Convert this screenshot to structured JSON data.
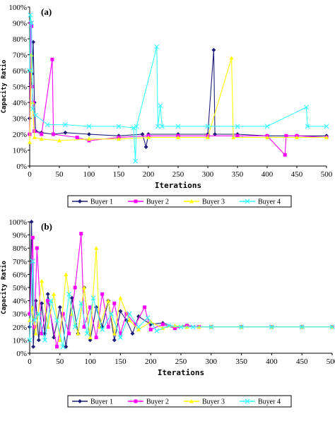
{
  "chart_data": [
    {
      "type": "line",
      "panel_label": "(a)",
      "xlabel": "Iterations",
      "ylabel": "Capacity Ratio",
      "xlim": [
        0,
        500
      ],
      "ylim": [
        0,
        100
      ],
      "xticks": [
        "0",
        "50",
        "100",
        "150",
        "200",
        "250",
        "300",
        "350",
        "400",
        "450",
        "500"
      ],
      "yticks": [
        "0%",
        "10%",
        "20%",
        "30%",
        "40%",
        "50%",
        "60%",
        "70%",
        "80%",
        "90%",
        "100%"
      ],
      "grid": false,
      "legend_position": "bottom",
      "series": [
        {
          "name": "Buyer 1",
          "color": "#1f1f7a",
          "marker": "diamond",
          "points": [
            [
              0,
              30
            ],
            [
              2,
              52
            ],
            [
              4,
              58
            ],
            [
              6,
              78
            ],
            [
              8,
              40
            ],
            [
              10,
              22
            ],
            [
              20,
              21
            ],
            [
              40,
              20
            ],
            [
              60,
              21
            ],
            [
              100,
              20
            ],
            [
              150,
              19
            ],
            [
              190,
              20
            ],
            [
              196,
              12
            ],
            [
              200,
              20
            ],
            [
              250,
              20
            ],
            [
              300,
              20
            ],
            [
              310,
              73
            ],
            [
              312,
              20
            ],
            [
              350,
              20
            ],
            [
              400,
              19
            ],
            [
              450,
              19
            ],
            [
              500,
              19
            ]
          ]
        },
        {
          "name": "Buyer 2",
          "color": "#ff00ff",
          "marker": "square",
          "points": [
            [
              0,
              20
            ],
            [
              2,
              90
            ],
            [
              3,
              88
            ],
            [
              4,
              50
            ],
            [
              6,
              40
            ],
            [
              8,
              22
            ],
            [
              20,
              20
            ],
            [
              38,
              67
            ],
            [
              40,
              20
            ],
            [
              80,
              18
            ],
            [
              100,
              16
            ],
            [
              150,
              18
            ],
            [
              200,
              19
            ],
            [
              250,
              19
            ],
            [
              300,
              19
            ],
            [
              350,
              19
            ],
            [
              400,
              19
            ],
            [
              430,
              7
            ],
            [
              432,
              19
            ],
            [
              450,
              19
            ],
            [
              500,
              18
            ]
          ]
        },
        {
          "name": "Buyer 3",
          "color": "#ffff00",
          "marker": "triangle",
          "points": [
            [
              0,
              15
            ],
            [
              3,
              70
            ],
            [
              5,
              40
            ],
            [
              8,
              18
            ],
            [
              20,
              17
            ],
            [
              50,
              16
            ],
            [
              100,
              17
            ],
            [
              150,
              17
            ],
            [
              200,
              18
            ],
            [
              250,
              18
            ],
            [
              300,
              18
            ],
            [
              340,
              68
            ],
            [
              343,
              18
            ],
            [
              400,
              18
            ],
            [
              450,
              18
            ],
            [
              500,
              18
            ]
          ]
        },
        {
          "name": "Buyer 4",
          "color": "#33ffff",
          "marker": "x",
          "points": [
            [
              0,
              60
            ],
            [
              1,
              95
            ],
            [
              3,
              90
            ],
            [
              5,
              36
            ],
            [
              10,
              32
            ],
            [
              30,
              26
            ],
            [
              60,
              26
            ],
            [
              100,
              25
            ],
            [
              150,
              25
            ],
            [
              175,
              24
            ],
            [
              178,
              3
            ],
            [
              180,
              25
            ],
            [
              214,
              75
            ],
            [
              216,
              25
            ],
            [
              220,
              38
            ],
            [
              223,
              25
            ],
            [
              250,
              25
            ],
            [
              300,
              25
            ],
            [
              350,
              25
            ],
            [
              400,
              25
            ],
            [
              466,
              37
            ],
            [
              468,
              25
            ],
            [
              500,
              25
            ]
          ]
        }
      ]
    },
    {
      "type": "line",
      "panel_label": "(b)",
      "xlabel": "Iterations",
      "ylabel": "Capacity Ratio",
      "xlim": [
        0,
        500
      ],
      "ylim": [
        0,
        100
      ],
      "xticks": [
        "0",
        "50",
        "100",
        "150",
        "200",
        "250",
        "300",
        "350",
        "400",
        "450",
        "500"
      ],
      "yticks": [
        "0%",
        "10%",
        "20%",
        "30%",
        "40%",
        "50%",
        "60%",
        "70%",
        "80%",
        "90%",
        "100%"
      ],
      "grid": false,
      "legend_position": "bottom",
      "series": [
        {
          "name": "Buyer 1",
          "color": "#1f1f7a",
          "marker": "diamond",
          "points": [
            [
              0,
              20
            ],
            [
              3,
              100
            ],
            [
              6,
              5
            ],
            [
              10,
              40
            ],
            [
              15,
              10
            ],
            [
              20,
              38
            ],
            [
              25,
              15
            ],
            [
              30,
              45
            ],
            [
              40,
              12
            ],
            [
              50,
              35
            ],
            [
              60,
              5
            ],
            [
              70,
              42
            ],
            [
              80,
              15
            ],
            [
              90,
              50
            ],
            [
              100,
              10
            ],
            [
              110,
              35
            ],
            [
              120,
              20
            ],
            [
              130,
              40
            ],
            [
              140,
              10
            ],
            [
              150,
              32
            ],
            [
              160,
              25
            ],
            [
              170,
              15
            ],
            [
              180,
              28
            ],
            [
              200,
              22
            ],
            [
              220,
              23
            ],
            [
              240,
              20
            ],
            [
              260,
              21
            ],
            [
              280,
              20
            ],
            [
              300,
              20
            ],
            [
              350,
              20
            ],
            [
              400,
              20
            ],
            [
              450,
              20
            ],
            [
              500,
              20
            ]
          ]
        },
        {
          "name": "Buyer 2",
          "color": "#ff00ff",
          "marker": "square",
          "points": [
            [
              0,
              30
            ],
            [
              5,
              88
            ],
            [
              8,
              20
            ],
            [
              12,
              80
            ],
            [
              20,
              15
            ],
            [
              30,
              40
            ],
            [
              45,
              5
            ],
            [
              55,
              30
            ],
            [
              65,
              15
            ],
            [
              75,
              50
            ],
            [
              85,
              91
            ],
            [
              90,
              20
            ],
            [
              100,
              35
            ],
            [
              110,
              12
            ],
            [
              120,
              45
            ],
            [
              130,
              20
            ],
            [
              140,
              38
            ],
            [
              150,
              15
            ],
            [
              160,
              30
            ],
            [
              175,
              22
            ],
            [
              190,
              35
            ],
            [
              200,
              18
            ],
            [
              220,
              22
            ],
            [
              240,
              19
            ],
            [
              260,
              21
            ],
            [
              280,
              20
            ],
            [
              300,
              20
            ],
            [
              350,
              20
            ],
            [
              400,
              20
            ],
            [
              450,
              20
            ],
            [
              500,
              20
            ]
          ]
        },
        {
          "name": "Buyer 3",
          "color": "#ffff00",
          "marker": "triangle",
          "points": [
            [
              0,
              25
            ],
            [
              4,
              35
            ],
            [
              10,
              15
            ],
            [
              20,
              55
            ],
            [
              30,
              20
            ],
            [
              40,
              45
            ],
            [
              50,
              10
            ],
            [
              60,
              60
            ],
            [
              70,
              30
            ],
            [
              80,
              15
            ],
            [
              90,
              50
            ],
            [
              100,
              12
            ],
            [
              110,
              80
            ],
            [
              115,
              20
            ],
            [
              130,
              40
            ],
            [
              140,
              15
            ],
            [
              150,
              42
            ],
            [
              165,
              25
            ],
            [
              180,
              18
            ],
            [
              200,
              24
            ],
            [
              220,
              19
            ],
            [
              240,
              21
            ],
            [
              260,
              20
            ],
            [
              280,
              20
            ],
            [
              300,
              20
            ],
            [
              350,
              20
            ],
            [
              400,
              20
            ],
            [
              450,
              20
            ],
            [
              500,
              20
            ]
          ]
        },
        {
          "name": "Buyer 4",
          "color": "#33ffff",
          "marker": "x",
          "points": [
            [
              0,
              10
            ],
            [
              5,
              70
            ],
            [
              8,
              25
            ],
            [
              15,
              30
            ],
            [
              25,
              10
            ],
            [
              35,
              40
            ],
            [
              45,
              25
            ],
            [
              55,
              5
            ],
            [
              65,
              45
            ],
            [
              75,
              20
            ],
            [
              85,
              38
            ],
            [
              95,
              15
            ],
            [
              105,
              42
            ],
            [
              120,
              18
            ],
            [
              135,
              30
            ],
            [
              150,
              12
            ],
            [
              165,
              30
            ],
            [
              180,
              20
            ],
            [
              195,
              27
            ],
            [
              210,
              17
            ],
            [
              230,
              21
            ],
            [
              250,
              20
            ],
            [
              270,
              20
            ],
            [
              300,
              20
            ],
            [
              350,
              20
            ],
            [
              400,
              20
            ],
            [
              450,
              20
            ],
            [
              500,
              20
            ]
          ]
        }
      ]
    }
  ]
}
